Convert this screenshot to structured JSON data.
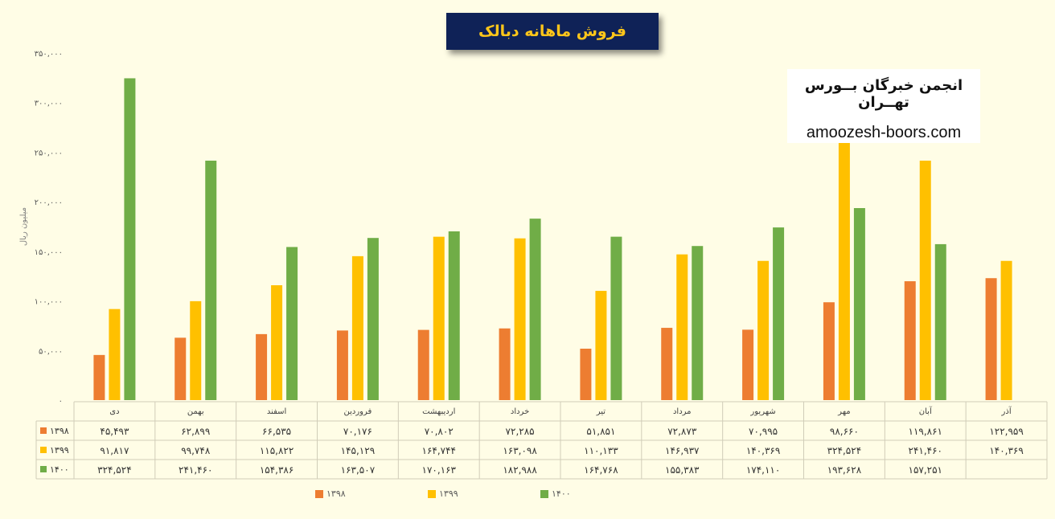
{
  "chart_data": {
    "type": "bar",
    "title": "فروش ماهانه دبالک",
    "ylabel": "میلیون ریال",
    "ylim": [
      0,
      350000
    ],
    "yticks": [
      "۰",
      "۵۰,۰۰۰",
      "۱۰۰,۰۰۰",
      "۱۵۰,۰۰۰",
      "۲۰۰,۰۰۰",
      "۲۵۰,۰۰۰",
      "۳۰۰,۰۰۰",
      "۳۵۰,۰۰۰"
    ],
    "grid": false,
    "legend": "bottom",
    "categories": [
      "دی",
      "بهمن",
      "اسفند",
      "فروردین",
      "اردیبهشت",
      "خرداد",
      "تیر",
      "مرداد",
      "شهریور",
      "مهر",
      "آبان",
      "آذر"
    ],
    "series": [
      {
        "name": "۱۳۹۸",
        "color": "#ed7d31",
        "values": [
          45493,
          62899,
          66535,
          70176,
          70802,
          72285,
          51851,
          72873,
          70995,
          98660,
          119861,
          122959
        ],
        "labels": [
          "۴۵,۴۹۳",
          "۶۲,۸۹۹",
          "۶۶,۵۳۵",
          "۷۰,۱۷۶",
          "۷۰,۸۰۲",
          "۷۲,۲۸۵",
          "۵۱,۸۵۱",
          "۷۲,۸۷۳",
          "۷۰,۹۹۵",
          "۹۸,۶۶۰",
          "۱۱۹,۸۶۱",
          "۱۲۲,۹۵۹"
        ]
      },
      {
        "name": "۱۳۹۹",
        "color": "#ffc000",
        "values": [
          91817,
          99748,
          115822,
          145129,
          164744,
          163098,
          110133,
          146937,
          140369,
          324524,
          241460,
          140369
        ],
        "labels": [
          "۹۱,۸۱۷",
          "۹۹,۷۴۸",
          "۱۱۵,۸۲۲",
          "۱۴۵,۱۲۹",
          "۱۶۴,۷۴۴",
          "۱۶۳,۰۹۸",
          "۱۱۰,۱۳۳",
          "۱۴۶,۹۳۷",
          "۱۴۰,۳۶۹",
          "۳۲۴,۵۲۴",
          "۲۴۱,۴۶۰",
          "۱۴۰,۳۶۹"
        ]
      },
      {
        "name": "۱۴۰۰",
        "color": "#70ad47",
        "values": [
          324524,
          241460,
          154386,
          163507,
          170163,
          182988,
          164768,
          155383,
          174110,
          193628,
          157251,
          null
        ],
        "labels": [
          "۳۲۴,۵۲۴",
          "۲۴۱,۴۶۰",
          "۱۵۴,۳۸۶",
          "۱۶۳,۵۰۷",
          "۱۷۰,۱۶۳",
          "۱۸۲,۹۸۸",
          "۱۶۴,۷۶۸",
          "۱۵۵,۳۸۳",
          "۱۷۴,۱۱۰",
          "۱۹۳,۶۲۸",
          "۱۵۷,۲۵۱",
          ""
        ]
      }
    ]
  },
  "brand": {
    "name": "انجمن خبرگان بــورس تهــران",
    "site": "amoozesh-boors.com"
  }
}
